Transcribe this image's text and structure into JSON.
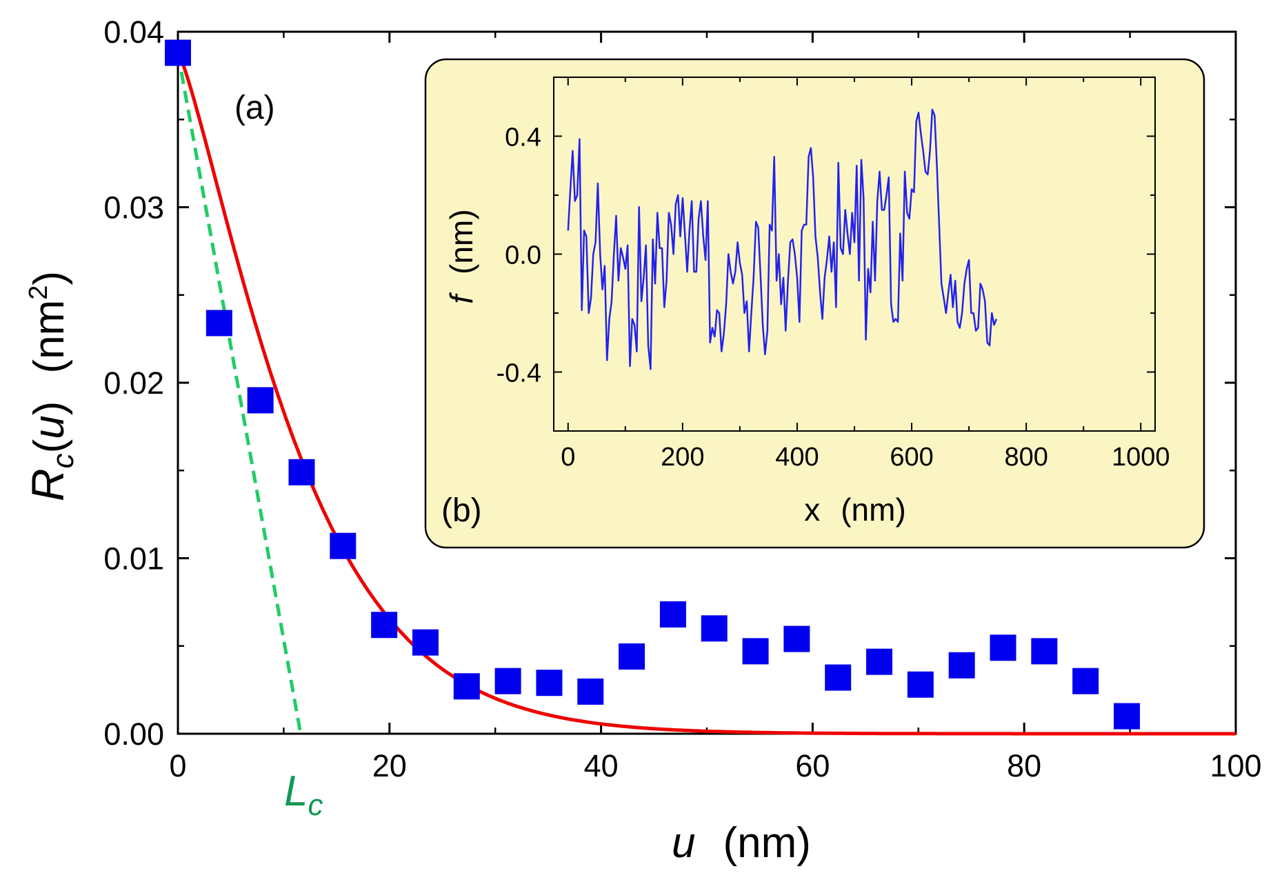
{
  "chart_data": [
    {
      "id": "main",
      "type": "scatter",
      "panel_label": "(a)",
      "xlabel": {
        "var": "u",
        "unit": "(nm)"
      },
      "ylabel": {
        "R": "R",
        "sub": "c",
        "open": "(",
        "arg": "u",
        "close": ")",
        "unit_open": "(nm",
        "unit_sup": "2",
        "unit_close": ")"
      },
      "xlim": [
        0,
        100
      ],
      "ylim": [
        0,
        0.04
      ],
      "xticks": [
        0,
        20,
        40,
        60,
        80,
        100
      ],
      "xtick_labels": [
        "0",
        "20",
        "40",
        "60",
        "80",
        "100"
      ],
      "yticks": [
        0,
        0.01,
        0.02,
        0.03,
        0.04
      ],
      "ytick_labels": [
        "0.00",
        "0.01",
        "0.02",
        "0.03",
        "0.04"
      ],
      "series": [
        {
          "name": "measured",
          "marker": "square",
          "color": "#0000ee",
          "x": [
            0,
            3.9,
            7.8,
            11.7,
            15.6,
            19.5,
            23.4,
            27.3,
            31.2,
            35.1,
            39.0,
            42.9,
            46.8,
            50.7,
            54.6,
            58.5,
            62.4,
            66.3,
            70.2,
            74.1,
            78.0,
            81.9,
            85.8,
            89.7
          ],
          "y": [
            0.0388,
            0.0234,
            0.019,
            0.0149,
            0.0107,
            0.0062,
            0.0052,
            0.0027,
            0.003,
            0.0029,
            0.0024,
            0.0044,
            0.0068,
            0.006,
            0.0047,
            0.0054,
            0.0032,
            0.0041,
            0.0028,
            0.0039,
            0.0049,
            0.0047,
            0.003,
            0.001
          ]
        },
        {
          "name": "fit",
          "type": "line",
          "color": "#ee0000",
          "model": "gaussian-exponential",
          "amplitude": 0.0388,
          "scale_nm": 12.6,
          "x_range": [
            0,
            100
          ]
        },
        {
          "name": "tangent",
          "type": "line",
          "style": "dashed",
          "color": "#22cc66",
          "x": [
            0,
            11.6
          ],
          "y": [
            0.0388,
            0
          ]
        }
      ],
      "annotations": [
        {
          "text": "L",
          "sub": "c",
          "at_x": 10.2,
          "color": "#119955"
        }
      ]
    },
    {
      "id": "inset",
      "type": "line",
      "panel_label": "(b)",
      "xlabel": {
        "var": "x",
        "unit": "(nm)"
      },
      "ylabel": {
        "var": "f",
        "unit": "(nm)"
      },
      "xlim": [
        -25,
        1025
      ],
      "ylim": [
        -0.6,
        0.6
      ],
      "xticks": [
        0,
        200,
        400,
        600,
        800,
        1000
      ],
      "xtick_labels": [
        "0",
        "200",
        "400",
        "600",
        "800",
        "1000"
      ],
      "yticks": [
        -0.4,
        0.0,
        0.4
      ],
      "ytick_labels": [
        "-0.4",
        "0.0",
        "0.4"
      ],
      "background": "#fbf5c4",
      "series": [
        {
          "name": "profile",
          "color": "#2222ee",
          "x_start": 0,
          "x_step": 4,
          "y": [
            0.08,
            0.22,
            0.35,
            0.18,
            0.2,
            0.39,
            -0.19,
            0.08,
            0.06,
            -0.2,
            -0.15,
            0.0,
            0.04,
            0.24,
            0.0,
            -0.12,
            -0.04,
            -0.36,
            -0.22,
            -0.16,
            0.0,
            0.13,
            -0.09,
            0.02,
            -0.01,
            -0.05,
            0.03,
            -0.38,
            -0.22,
            -0.24,
            -0.33,
            0.16,
            -0.16,
            -0.08,
            0.03,
            -0.31,
            -0.39,
            0.05,
            -0.1,
            0.14,
            0.02,
            0.02,
            -0.18,
            -0.09,
            0.14,
            0.1,
            0.0,
            0.17,
            0.2,
            0.06,
            0.19,
            0.07,
            -0.06,
            0.08,
            0.18,
            -0.06,
            -0.06,
            0.12,
            0.18,
            0.06,
            -0.02,
            0.18,
            -0.3,
            -0.25,
            -0.28,
            -0.19,
            -0.2,
            -0.33,
            -0.27,
            -0.17,
            0.0,
            -0.06,
            -0.1,
            -0.06,
            0.04,
            -0.03,
            -0.07,
            -0.2,
            -0.16,
            -0.33,
            -0.2,
            -0.08,
            0.11,
            0.09,
            -0.07,
            -0.24,
            -0.34,
            -0.26,
            0.1,
            0.08,
            0.33,
            -0.09,
            0.0,
            -0.17,
            -0.08,
            -0.26,
            -0.09,
            0.04,
            0.05,
            0.0,
            -0.08,
            -0.23,
            0.08,
            0.1,
            0.1,
            0.33,
            0.36,
            0.26,
            0.06,
            -0.01,
            -0.13,
            -0.22,
            -0.08,
            -0.02,
            0.06,
            -0.06,
            0.04,
            -0.18,
            0.31,
            0.02,
            0.0,
            0.15,
            0.07,
            0.0,
            0.14,
            0.04,
            0.3,
            -0.09,
            0.32,
            0.19,
            -0.29,
            -0.05,
            -0.13,
            0.11,
            -0.09,
            0.18,
            0.28,
            0.15,
            0.15,
            0.2,
            0.26,
            -0.17,
            -0.23,
            -0.22,
            -0.23,
            0.07,
            -0.09,
            0.28,
            0.14,
            0.12,
            0.22,
            0.21,
            0.45,
            0.48,
            0.41,
            0.35,
            0.28,
            0.27,
            0.35,
            0.49,
            0.47,
            0.3,
            0.1,
            -0.1,
            -0.15,
            -0.2,
            -0.13,
            -0.07,
            -0.18,
            -0.09,
            -0.23,
            -0.25,
            -0.2,
            -0.1,
            -0.05,
            -0.02,
            -0.2,
            -0.2,
            -0.26,
            -0.25,
            -0.1,
            -0.12,
            -0.16,
            -0.3,
            -0.31,
            -0.2,
            -0.24,
            -0.22
          ]
        }
      ]
    }
  ]
}
